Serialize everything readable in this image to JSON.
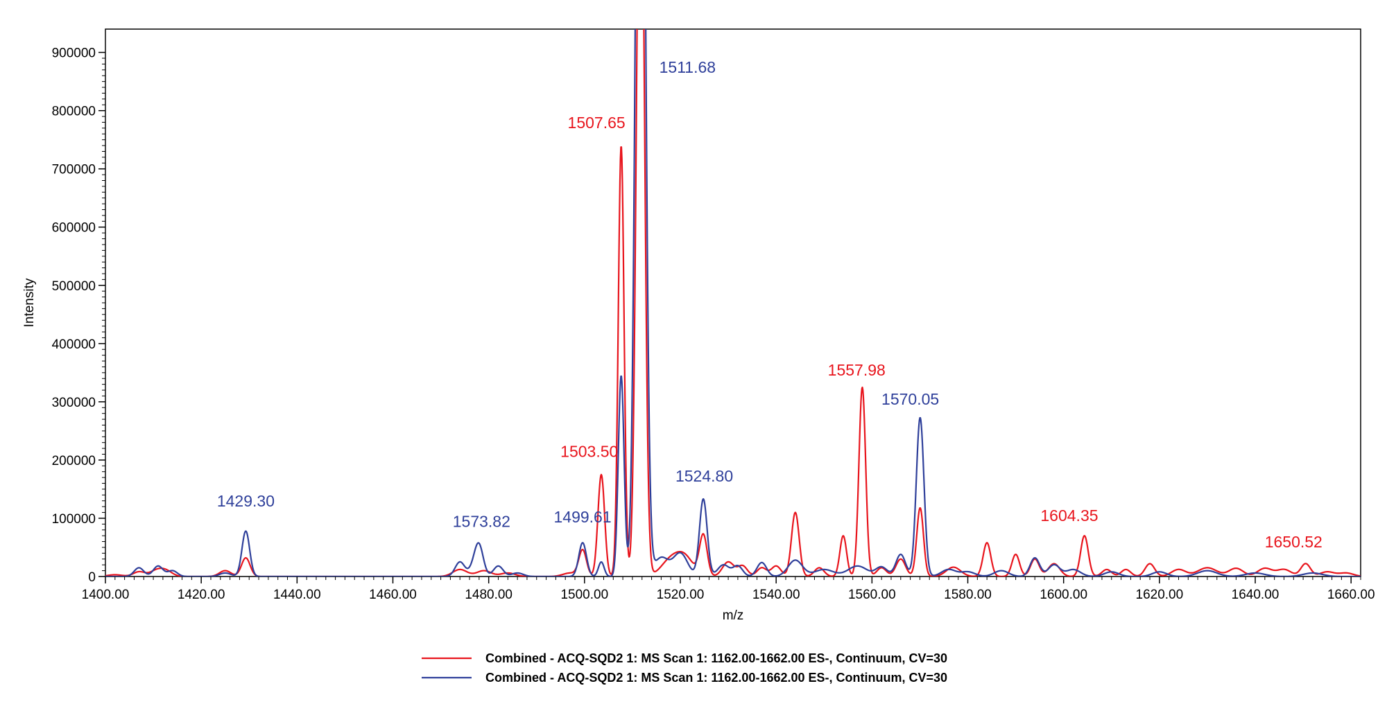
{
  "chart_data": {
    "type": "line",
    "title": "",
    "xlabel": "m/z",
    "ylabel": "Intensity",
    "xlim": [
      1400,
      1662
    ],
    "ylim": [
      0,
      940000
    ],
    "x_ticks": [
      "1400.00",
      "1420.00",
      "1440.00",
      "1460.00",
      "1480.00",
      "1500.00",
      "1520.00",
      "1540.00",
      "1560.00",
      "1580.00",
      "1600.00",
      "1620.00",
      "1640.00",
      "1660.00"
    ],
    "y_ticks": [
      "0",
      "100000",
      "200000",
      "300000",
      "400000",
      "500000",
      "600000",
      "700000",
      "800000",
      "900000"
    ],
    "grid": false,
    "legend_position": "bottom-center",
    "series": [
      {
        "name": "Combined - ACQ-SQD2 1: MS Scan 1: 1162.00-1662.00 ES-, Continuum, CV=30",
        "color": "#e8141c",
        "peaks": [
          [
            1402,
            3000,
            1.5
          ],
          [
            1407,
            8000,
            1.2
          ],
          [
            1411,
            12000,
            1.5
          ],
          [
            1413,
            6000,
            1.2
          ],
          [
            1425,
            10000,
            1.2
          ],
          [
            1429.3,
            32000,
            0.9
          ],
          [
            1474,
            12000,
            1.5
          ],
          [
            1479,
            10000,
            1.5
          ],
          [
            1484,
            6000,
            1.5
          ],
          [
            1497,
            6000,
            1.5
          ],
          [
            1499.61,
            45000,
            0.8
          ],
          [
            1503.5,
            175000,
            0.7
          ],
          [
            1507.65,
            740000,
            0.6
          ],
          [
            1511.68,
            1400000,
            0.8
          ],
          [
            1518,
            28000,
            2.0
          ],
          [
            1521,
            30000,
            1.8
          ],
          [
            1524.8,
            70000,
            0.8
          ],
          [
            1530,
            25000,
            1.2
          ],
          [
            1533,
            18000,
            1.0
          ],
          [
            1537,
            15000,
            1.0
          ],
          [
            1540,
            18000,
            1.0
          ],
          [
            1544,
            110000,
            0.8
          ],
          [
            1549,
            15000,
            1.0
          ],
          [
            1554,
            70000,
            0.7
          ],
          [
            1557.98,
            325000,
            0.7
          ],
          [
            1562,
            15000,
            1.0
          ],
          [
            1566,
            30000,
            1.0
          ],
          [
            1570.05,
            118000,
            0.7
          ],
          [
            1577,
            16000,
            1.5
          ],
          [
            1584,
            58000,
            0.8
          ],
          [
            1590,
            38000,
            0.8
          ],
          [
            1594,
            30000,
            0.9
          ],
          [
            1598,
            22000,
            1.2
          ],
          [
            1604.35,
            70000,
            0.8
          ],
          [
            1609,
            12000,
            1.0
          ],
          [
            1613,
            12000,
            1.0
          ],
          [
            1618,
            22000,
            1.0
          ],
          [
            1624,
            12000,
            1.5
          ],
          [
            1630,
            15000,
            2.0
          ],
          [
            1636,
            14000,
            1.5
          ],
          [
            1642,
            14000,
            1.5
          ],
          [
            1646,
            12000,
            1.5
          ],
          [
            1650.52,
            22000,
            1.0
          ],
          [
            1655,
            8000,
            1.5
          ],
          [
            1659,
            6000,
            1.5
          ]
        ]
      },
      {
        "name": "Combined - ACQ-SQD2 1: MS Scan 1: 1162.00-1662.00 ES-, Continuum, CV=30",
        "color": "#2e3f9a",
        "peaks": [
          [
            1407,
            15000,
            1.0
          ],
          [
            1411,
            18000,
            1.0
          ],
          [
            1414,
            10000,
            1.0
          ],
          [
            1425,
            6000,
            1.2
          ],
          [
            1429.3,
            78000,
            0.8
          ],
          [
            1474,
            25000,
            1.0
          ],
          [
            1477,
            15000,
            1.0
          ],
          [
            1478,
            48000,
            0.9
          ],
          [
            1482,
            18000,
            1.0
          ],
          [
            1486,
            6000,
            1.2
          ],
          [
            1499.61,
            58000,
            0.8
          ],
          [
            1503.5,
            25000,
            0.6
          ],
          [
            1507.65,
            345000,
            0.6
          ],
          [
            1511.68,
            2000000,
            0.9
          ],
          [
            1516,
            32000,
            1.5
          ],
          [
            1520,
            40000,
            1.5
          ],
          [
            1524.8,
            133000,
            0.8
          ],
          [
            1529,
            20000,
            1.2
          ],
          [
            1532,
            18000,
            1.0
          ],
          [
            1537,
            24000,
            1.0
          ],
          [
            1544,
            28000,
            1.5
          ],
          [
            1550,
            12000,
            2.0
          ],
          [
            1557,
            18000,
            2.0
          ],
          [
            1562,
            16000,
            1.2
          ],
          [
            1566,
            38000,
            1.0
          ],
          [
            1570.05,
            273000,
            0.8
          ],
          [
            1576,
            12000,
            1.5
          ],
          [
            1580,
            8000,
            1.5
          ],
          [
            1587,
            10000,
            1.5
          ],
          [
            1594,
            32000,
            1.0
          ],
          [
            1598,
            20000,
            1.2
          ],
          [
            1602,
            12000,
            1.5
          ],
          [
            1610,
            8000,
            1.5
          ],
          [
            1620,
            8000,
            1.5
          ],
          [
            1630,
            10000,
            2.0
          ],
          [
            1640,
            6000,
            2.0
          ],
          [
            1652,
            6000,
            2.0
          ]
        ]
      }
    ],
    "annotations": [
      {
        "text": "1429.30",
        "x": 1429.3,
        "y": 120000,
        "color": "#2e3f9a"
      },
      {
        "text": "1573.82",
        "x": 1478.5,
        "y": 85000,
        "color": "#2e3f9a"
      },
      {
        "text": "1499.61",
        "x": 1499.6,
        "y": 93000,
        "color": "#2e3f9a"
      },
      {
        "text": "1503.50",
        "x": 1501.0,
        "y": 205000,
        "color": "#e8141c"
      },
      {
        "text": "1507.65",
        "x": 1502.5,
        "y": 770000,
        "color": "#e8141c"
      },
      {
        "text": "1511.68",
        "x": 1521.5,
        "y": 865000,
        "color": "#2e3f9a"
      },
      {
        "text": "1524.80",
        "x": 1525.0,
        "y": 163000,
        "color": "#2e3f9a"
      },
      {
        "text": "1557.98",
        "x": 1556.8,
        "y": 345000,
        "color": "#e8141c"
      },
      {
        "text": "1570.05",
        "x": 1568.0,
        "y": 295000,
        "color": "#2e3f9a"
      },
      {
        "text": "1604.35",
        "x": 1601.2,
        "y": 95000,
        "color": "#e8141c"
      },
      {
        "text": "1650.52",
        "x": 1648.0,
        "y": 50000,
        "color": "#e8141c"
      }
    ],
    "legend": [
      {
        "text": "Combined - ACQ-SQD2 1: MS Scan 1: 1162.00-1662.00 ES-, Continuum, CV=30",
        "color": "#e8141c"
      },
      {
        "text": "Combined - ACQ-SQD2 1: MS Scan 1: 1162.00-1662.00 ES-, Continuum, CV=30",
        "color": "#2e3f9a"
      }
    ]
  }
}
